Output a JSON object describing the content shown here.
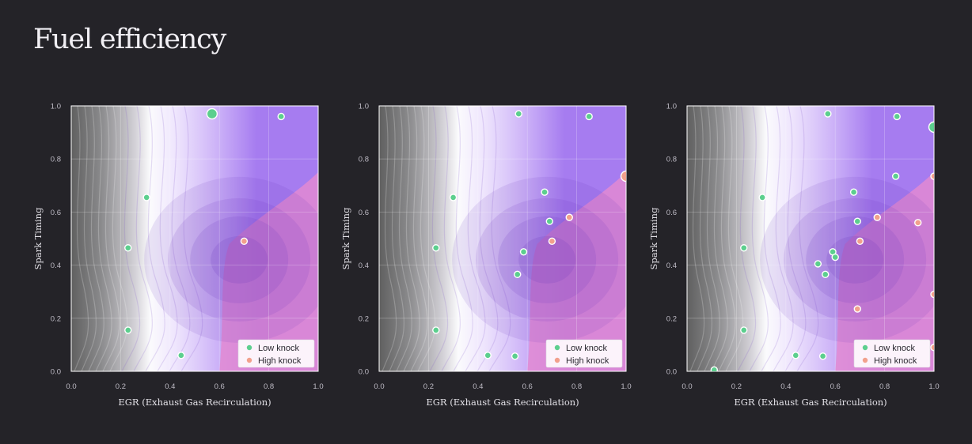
{
  "title": "Fuel efficiency",
  "colors": {
    "background": "#242328",
    "low_knock": "#5ccf8e",
    "high_knock": "#f2a08c",
    "region_low": "#a67cf0",
    "region_high": "#e28ad2",
    "point_edge": "#ffffff"
  },
  "chart_data": [
    {
      "type": "scatter",
      "xlabel": "EGR (Exhaust Gas Recirculation)",
      "ylabel": "Spark Timing",
      "xlim": [
        0,
        1
      ],
      "ylim": [
        0,
        1
      ],
      "xticks": [
        "0.0",
        "0.2",
        "0.4",
        "0.6",
        "0.8",
        "1.0"
      ],
      "yticks": [
        "0.0",
        "0.2",
        "0.4",
        "0.6",
        "0.8",
        "1.0"
      ],
      "grid": true,
      "background": "contour",
      "legend": {
        "position": "bottom-right",
        "entries": [
          "Low knock",
          "High knock"
        ]
      },
      "series": [
        {
          "name": "Low knock",
          "points": [
            [
              0.57,
              0.97
            ],
            [
              0.85,
              0.96
            ],
            [
              0.305,
              0.655
            ],
            [
              0.23,
              0.465
            ],
            [
              0.23,
              0.155
            ],
            [
              0.445,
              0.06
            ]
          ]
        },
        {
          "name": "High knock",
          "points": [
            [
              0.7,
              0.49
            ]
          ]
        }
      ]
    },
    {
      "type": "scatter",
      "xlabel": "EGR (Exhaust Gas Recirculation)",
      "ylabel": "Spark Timing",
      "xlim": [
        0,
        1
      ],
      "ylim": [
        0,
        1
      ],
      "xticks": [
        "0.0",
        "0.2",
        "0.4",
        "0.6",
        "0.8",
        "1.0"
      ],
      "yticks": [
        "0.0",
        "0.2",
        "0.4",
        "0.6",
        "0.8",
        "1.0"
      ],
      "grid": true,
      "background": "contour",
      "legend": {
        "position": "bottom-right",
        "entries": [
          "Low knock",
          "High knock"
        ]
      },
      "series": [
        {
          "name": "Low knock",
          "points": [
            [
              0.565,
              0.97
            ],
            [
              0.85,
              0.96
            ],
            [
              0.3,
              0.655
            ],
            [
              0.67,
              0.675
            ],
            [
              0.69,
              0.565
            ],
            [
              0.585,
              0.45
            ],
            [
              0.56,
              0.365
            ],
            [
              0.23,
              0.465
            ],
            [
              0.23,
              0.155
            ],
            [
              0.44,
              0.06
            ],
            [
              0.55,
              0.057
            ]
          ]
        },
        {
          "name": "High knock",
          "points": [
            [
              1.0,
              0.735
            ],
            [
              0.77,
              0.58
            ],
            [
              0.7,
              0.49
            ]
          ]
        }
      ]
    },
    {
      "type": "scatter",
      "xlabel": "EGR (Exhaust Gas Recirculation)",
      "ylabel": "Spark Timing",
      "xlim": [
        0,
        1
      ],
      "ylim": [
        0,
        1
      ],
      "xticks": [
        "0.0",
        "0.2",
        "0.4",
        "0.6",
        "0.8",
        "1.0"
      ],
      "yticks": [
        "0.0",
        "0.2",
        "0.4",
        "0.6",
        "0.8",
        "1.0"
      ],
      "grid": true,
      "background": "contour",
      "legend": {
        "position": "bottom-right",
        "entries": [
          "Low knock",
          "High knock"
        ]
      },
      "series": [
        {
          "name": "Low knock",
          "points": [
            [
              0.57,
              0.97
            ],
            [
              0.85,
              0.96
            ],
            [
              1.0,
              0.92
            ],
            [
              0.845,
              0.735
            ],
            [
              0.675,
              0.675
            ],
            [
              0.305,
              0.655
            ],
            [
              0.69,
              0.565
            ],
            [
              0.23,
              0.465
            ],
            [
              0.59,
              0.45
            ],
            [
              0.6,
              0.43
            ],
            [
              0.53,
              0.405
            ],
            [
              0.56,
              0.365
            ],
            [
              0.23,
              0.155
            ],
            [
              0.44,
              0.06
            ],
            [
              0.55,
              0.057
            ],
            [
              0.11,
              0.005
            ]
          ]
        },
        {
          "name": "High knock",
          "points": [
            [
              1.0,
              0.735
            ],
            [
              0.77,
              0.58
            ],
            [
              0.935,
              0.56
            ],
            [
              0.7,
              0.49
            ],
            [
              1.0,
              0.29
            ],
            [
              0.69,
              0.235
            ],
            [
              1.0,
              0.09
            ]
          ]
        }
      ]
    }
  ]
}
